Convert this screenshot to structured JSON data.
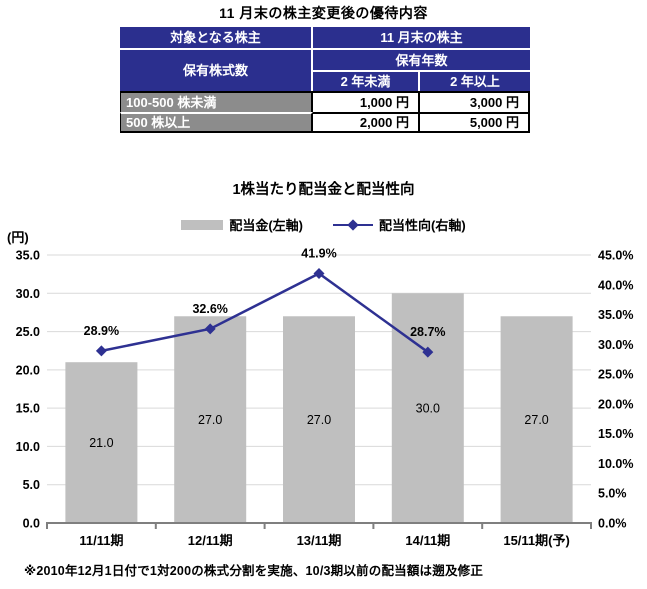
{
  "page": {
    "title": "11 月末の株主変更後の優待内容",
    "footnote": "※2010年12月1日付で1対200の株式分割を実施、10/3期以前の配当額は遡及修正"
  },
  "benefit_table": {
    "header": {
      "target": "対象となる株主",
      "november": "11 月末の株主",
      "shares_held": "保有株式数",
      "years_held": "保有年数",
      "under_2_years": "2 年未満",
      "over_2_years": "2 年以上"
    },
    "rows": [
      {
        "label": "100-500 株未満",
        "under2": "1,000 円",
        "over2": "3,000 円"
      },
      {
        "label": "500 株以上",
        "under2": "2,000 円",
        "over2": "5,000 円"
      }
    ]
  },
  "chart": {
    "title": "1株当たり配当金と配当性向",
    "unit_label": "(円)",
    "legend_bar_label": "配当金(左軸)",
    "legend_line_label": "配当性向(右軸)"
  },
  "chart_data": {
    "type": "bar",
    "title": "1株当たり配当金と配当性向",
    "categories": [
      "11/11期",
      "12/11期",
      "13/11期",
      "14/11期",
      "15/11期(予)"
    ],
    "series": [
      {
        "name": "配当金(左軸)",
        "type": "bar",
        "axis": "left",
        "values": [
          21.0,
          27.0,
          27.0,
          30.0,
          27.0
        ]
      },
      {
        "name": "配当性向(右軸)",
        "type": "line",
        "axis": "right",
        "values": [
          28.9,
          32.6,
          41.9,
          28.7,
          null
        ]
      }
    ],
    "left_axis": {
      "label": "(円)",
      "min": 0.0,
      "max": 35.0,
      "step": 5.0
    },
    "right_axis": {
      "label": "%",
      "min": 0.0,
      "max": 45.0,
      "step": 5.0,
      "suffix": "%"
    },
    "grid": true,
    "legend_position": "top"
  },
  "colors": {
    "navy_header": "#2b2f8e",
    "gray_row_header": "#8c8c8c",
    "bar": "#bfbfbf",
    "line": "#2e3192",
    "gridline": "#d9d9d9",
    "axis": "#7f7f7f",
    "text": "#000000"
  }
}
